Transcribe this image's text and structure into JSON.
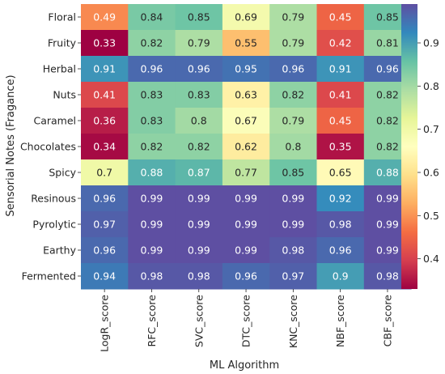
{
  "chart_data": {
    "type": "heatmap",
    "title": "",
    "xlabel": "ML Algorithm",
    "ylabel": "Sensorial Notes (Fragance)",
    "x_categories": [
      "LogR_score",
      "RFC_score",
      "SVC_score",
      "DTC_score",
      "KNC_score",
      "NBF_score",
      "CBF_score"
    ],
    "y_categories": [
      "Floral",
      "Fruity",
      "Herbal",
      "Nuts",
      "Caramel",
      "Chocolates",
      "Spicy",
      "Resinous",
      "Pyrolytic",
      "Earthy",
      "Fermented"
    ],
    "values": [
      [
        0.49,
        0.84,
        0.85,
        0.69,
        0.79,
        0.45,
        0.85
      ],
      [
        0.33,
        0.82,
        0.79,
        0.55,
        0.79,
        0.42,
        0.81
      ],
      [
        0.91,
        0.96,
        0.96,
        0.95,
        0.96,
        0.91,
        0.96
      ],
      [
        0.41,
        0.83,
        0.83,
        0.63,
        0.82,
        0.41,
        0.82
      ],
      [
        0.36,
        0.83,
        0.8,
        0.67,
        0.79,
        0.45,
        0.82
      ],
      [
        0.34,
        0.82,
        0.82,
        0.62,
        0.8,
        0.35,
        0.82
      ],
      [
        0.7,
        0.88,
        0.87,
        0.77,
        0.85,
        0.65,
        0.88
      ],
      [
        0.96,
        0.99,
        0.99,
        0.99,
        0.99,
        0.92,
        0.99
      ],
      [
        0.97,
        0.99,
        0.99,
        0.99,
        0.99,
        0.98,
        0.99
      ],
      [
        0.96,
        0.99,
        0.99,
        0.99,
        0.98,
        0.96,
        0.99
      ],
      [
        0.94,
        0.98,
        0.98,
        0.96,
        0.97,
        0.9,
        0.98
      ]
    ],
    "colormap": "Spectral",
    "vmin": 0.33,
    "vmax": 0.99,
    "colorbar_ticks": [
      0.4,
      0.5,
      0.6,
      0.7,
      0.8,
      0.9
    ],
    "grid": false
  }
}
